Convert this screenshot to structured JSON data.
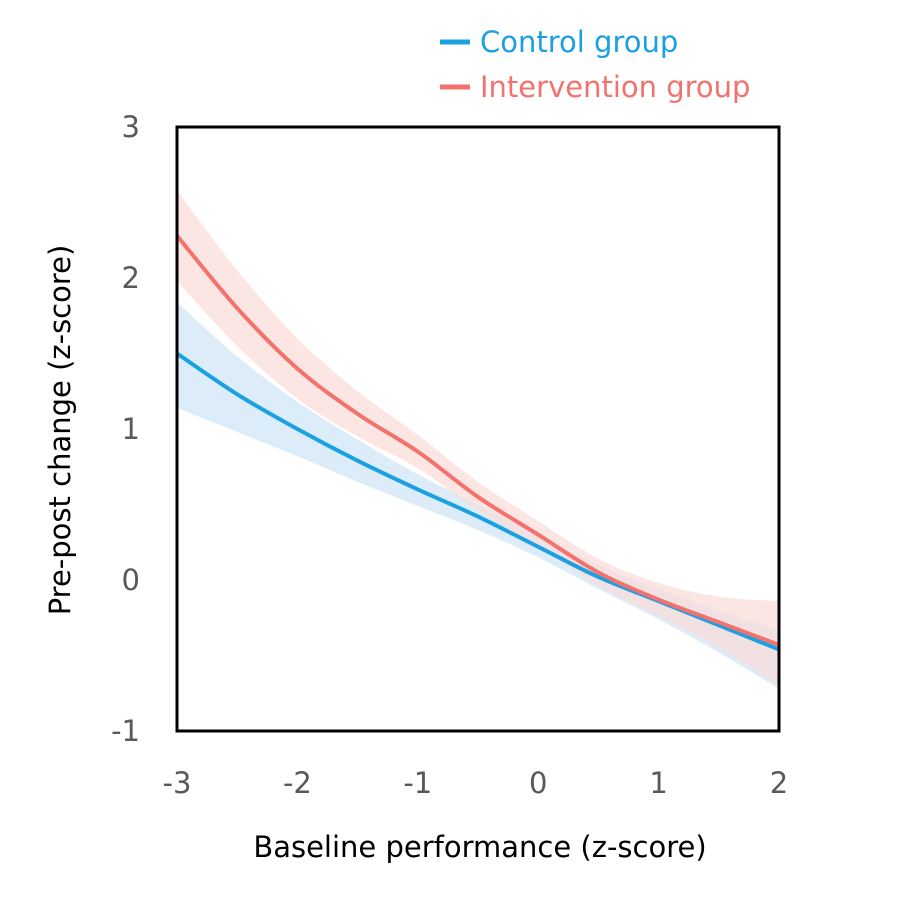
{
  "chart_data": {
    "type": "line",
    "title": "",
    "xlabel": "Baseline performance (z-score)",
    "ylabel": "Pre-post change (z-score)",
    "xlim": [
      -3,
      2
    ],
    "ylim": [
      -1,
      3
    ],
    "xticks": [
      "-3",
      "-2",
      "-1",
      "0",
      "1",
      "2"
    ],
    "yticks": [
      "3",
      "2",
      "1",
      "0",
      "-1"
    ],
    "grid": false,
    "legend_position": "top-right",
    "x": [
      -3,
      -2.5,
      -2,
      -1.5,
      -1,
      -0.5,
      0,
      0.5,
      1,
      1.5,
      2
    ],
    "series": [
      {
        "name": "Control group",
        "color": "#1BA1E2",
        "band_color": "#D6EAF8",
        "values": [
          1.5,
          1.23,
          1.0,
          0.79,
          0.6,
          0.42,
          0.22,
          0.02,
          -0.14,
          -0.3,
          -0.46
        ],
        "ci_upper": [
          1.84,
          1.48,
          1.18,
          0.93,
          0.7,
          0.5,
          0.3,
          0.1,
          -0.06,
          -0.2,
          -0.33
        ],
        "ci_lower": [
          1.14,
          0.98,
          0.82,
          0.65,
          0.49,
          0.33,
          0.15,
          -0.06,
          -0.26,
          -0.48,
          -0.72
        ]
      },
      {
        "name": "Intervention group",
        "color": "#F4726E",
        "band_color": "#FADBD8",
        "values": [
          2.28,
          1.8,
          1.4,
          1.1,
          0.85,
          0.55,
          0.3,
          0.05,
          -0.13,
          -0.28,
          -0.43
        ],
        "ci_upper": [
          2.58,
          2.05,
          1.6,
          1.25,
          0.96,
          0.65,
          0.39,
          0.14,
          -0.02,
          -0.11,
          -0.14
        ],
        "ci_lower": [
          1.98,
          1.55,
          1.2,
          0.95,
          0.74,
          0.46,
          0.22,
          -0.04,
          -0.24,
          -0.45,
          -0.7
        ]
      }
    ]
  }
}
